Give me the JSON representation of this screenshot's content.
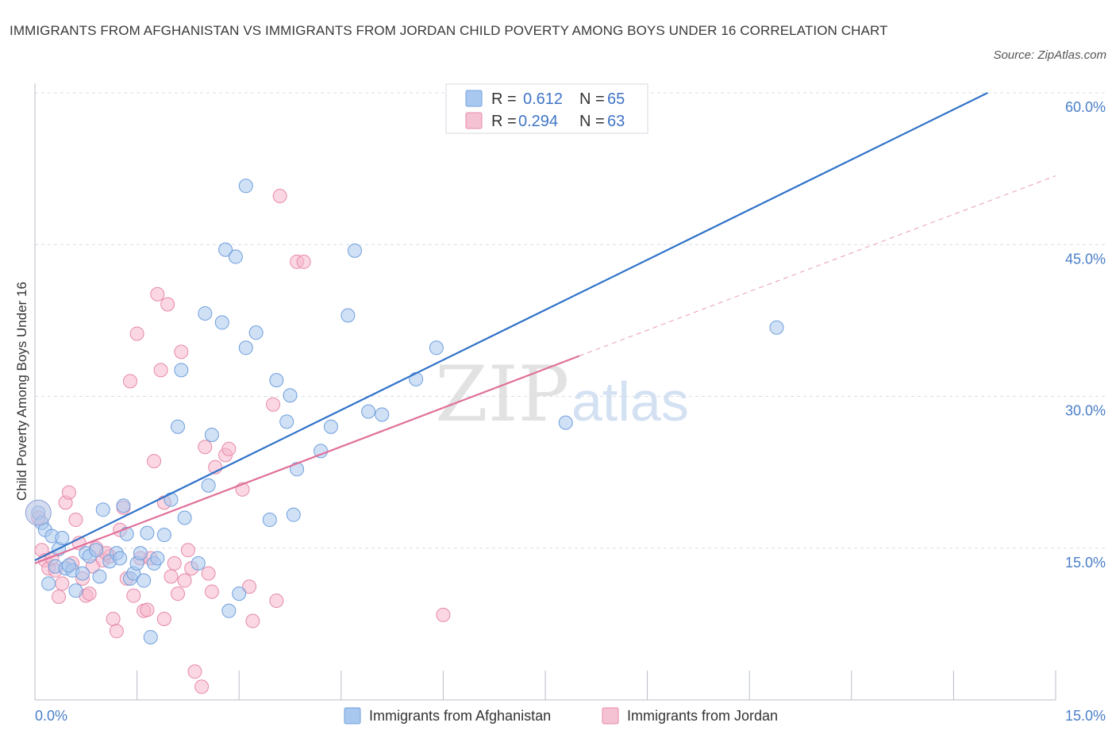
{
  "title": "IMMIGRANTS FROM AFGHANISTAN VS IMMIGRANTS FROM JORDAN CHILD POVERTY AMONG BOYS UNDER 16 CORRELATION CHART",
  "source": "Source: ZipAtlas.com",
  "watermark": {
    "zip": "ZIP",
    "atlas": "atlas"
  },
  "colors": {
    "afghanistan_fill": "#a9c8ef",
    "afghanistan_stroke": "#6f9fdc",
    "afghanistan_line": "#2f72c9",
    "jordan_fill": "#f5b6cb",
    "jordan_stroke": "#e68aaa",
    "jordan_line": "#e0709a",
    "grid": "#d8dde6",
    "axis_label": "#4a7ec9"
  },
  "legend": {
    "rows": [
      {
        "r_label": "R =",
        "r_value": "0.612",
        "n_label": "N =",
        "n_value": "65"
      },
      {
        "r_label": "R =",
        "r_value": "0.294",
        "n_label": "N =",
        "n_value": "63"
      }
    ]
  },
  "chart_data": {
    "type": "scatter",
    "title": "IMMIGRANTS FROM AFGHANISTAN VS IMMIGRANTS FROM JORDAN CHILD POVERTY AMONG BOYS UNDER 16 CORRELATION CHART",
    "xlabel": "",
    "ylabel": "Child Poverty Among Boys Under 16",
    "xlim": [
      0,
      15
    ],
    "ylim": [
      0,
      60
    ],
    "x_tick_labels": [
      "0.0%",
      "15.0%"
    ],
    "y_tick_labels": [
      "15.0%",
      "30.0%",
      "45.0%",
      "60.0%"
    ],
    "y_ticks": [
      15,
      30,
      45,
      60
    ],
    "series": [
      {
        "name": "Immigrants from Afghanistan",
        "R": 0.612,
        "N": 65,
        "trend": {
          "x": [
            0.0,
            14.0
          ],
          "y": [
            13.8,
            60.0
          ]
        },
        "points": [
          [
            0.05,
            18.5
          ],
          [
            0.1,
            17.5
          ],
          [
            0.15,
            16.8
          ],
          [
            0.25,
            16.2
          ],
          [
            0.35,
            14.9
          ],
          [
            0.4,
            16.0
          ],
          [
            0.2,
            11.5
          ],
          [
            0.3,
            13.2
          ],
          [
            0.45,
            13.0
          ],
          [
            0.55,
            12.8
          ],
          [
            0.6,
            10.8
          ],
          [
            0.7,
            12.5
          ],
          [
            0.75,
            14.5
          ],
          [
            0.8,
            14.2
          ],
          [
            0.9,
            14.8
          ],
          [
            0.95,
            12.2
          ],
          [
            1.0,
            18.8
          ],
          [
            1.1,
            13.7
          ],
          [
            1.2,
            14.5
          ],
          [
            1.25,
            14.0
          ],
          [
            1.3,
            19.2
          ],
          [
            1.35,
            16.4
          ],
          [
            1.4,
            12.0
          ],
          [
            1.45,
            12.5
          ],
          [
            1.5,
            13.5
          ],
          [
            1.55,
            14.5
          ],
          [
            1.6,
            11.8
          ],
          [
            1.65,
            16.5
          ],
          [
            1.7,
            6.2
          ],
          [
            1.75,
            13.5
          ],
          [
            1.8,
            14.0
          ],
          [
            1.9,
            16.3
          ],
          [
            2.0,
            19.8
          ],
          [
            2.1,
            27.0
          ],
          [
            2.15,
            32.6
          ],
          [
            2.2,
            18.0
          ],
          [
            2.4,
            13.5
          ],
          [
            2.5,
            38.2
          ],
          [
            2.55,
            21.2
          ],
          [
            2.6,
            26.2
          ],
          [
            2.75,
            37.3
          ],
          [
            2.8,
            44.5
          ],
          [
            2.85,
            8.8
          ],
          [
            2.95,
            43.8
          ],
          [
            3.0,
            10.5
          ],
          [
            3.1,
            34.8
          ],
          [
            3.1,
            50.8
          ],
          [
            3.25,
            36.3
          ],
          [
            3.45,
            17.8
          ],
          [
            3.55,
            31.6
          ],
          [
            3.7,
            27.5
          ],
          [
            3.75,
            30.1
          ],
          [
            3.8,
            18.3
          ],
          [
            3.85,
            22.8
          ],
          [
            4.2,
            24.6
          ],
          [
            4.35,
            27.0
          ],
          [
            4.6,
            38.0
          ],
          [
            4.7,
            44.4
          ],
          [
            4.9,
            28.5
          ],
          [
            5.1,
            28.2
          ],
          [
            5.6,
            31.7
          ],
          [
            5.9,
            34.8
          ],
          [
            7.8,
            27.4
          ],
          [
            10.9,
            36.8
          ],
          [
            0.5,
            13.3
          ]
        ]
      },
      {
        "name": "Immigrants from Jordan",
        "R": 0.294,
        "N": 63,
        "trend": {
          "x": [
            0.0,
            8.0
          ],
          "y": [
            13.5,
            34.0
          ]
        },
        "trend_ext": {
          "x": [
            8.0,
            15.0
          ],
          "y": [
            34.0,
            51.8
          ]
        },
        "points": [
          [
            0.05,
            18.0
          ],
          [
            0.1,
            14.8
          ],
          [
            0.15,
            13.8
          ],
          [
            0.2,
            13.0
          ],
          [
            0.3,
            12.8
          ],
          [
            0.35,
            10.2
          ],
          [
            0.4,
            11.5
          ],
          [
            0.45,
            19.5
          ],
          [
            0.5,
            20.5
          ],
          [
            0.55,
            13.5
          ],
          [
            0.6,
            17.8
          ],
          [
            0.7,
            12.0
          ],
          [
            0.75,
            10.3
          ],
          [
            0.8,
            10.5
          ],
          [
            0.9,
            15.0
          ],
          [
            1.0,
            13.8
          ],
          [
            1.1,
            14.2
          ],
          [
            1.15,
            8.0
          ],
          [
            1.2,
            6.8
          ],
          [
            1.25,
            16.8
          ],
          [
            1.3,
            19.0
          ],
          [
            1.35,
            12.0
          ],
          [
            1.4,
            31.5
          ],
          [
            1.45,
            10.3
          ],
          [
            1.5,
            36.2
          ],
          [
            1.55,
            14.0
          ],
          [
            1.6,
            8.8
          ],
          [
            1.65,
            8.9
          ],
          [
            1.7,
            14.0
          ],
          [
            1.75,
            23.6
          ],
          [
            1.8,
            40.1
          ],
          [
            1.85,
            32.6
          ],
          [
            1.9,
            8.0
          ],
          [
            1.95,
            39.1
          ],
          [
            2.0,
            12.2
          ],
          [
            2.05,
            13.5
          ],
          [
            2.1,
            10.5
          ],
          [
            2.15,
            34.4
          ],
          [
            2.2,
            11.8
          ],
          [
            2.25,
            14.8
          ],
          [
            2.3,
            13.0
          ],
          [
            2.35,
            2.8
          ],
          [
            2.45,
            1.3
          ],
          [
            2.5,
            25.0
          ],
          [
            2.6,
            10.7
          ],
          [
            2.65,
            23.0
          ],
          [
            2.8,
            24.2
          ],
          [
            2.85,
            24.8
          ],
          [
            3.05,
            20.8
          ],
          [
            3.15,
            11.2
          ],
          [
            3.2,
            7.8
          ],
          [
            3.5,
            29.2
          ],
          [
            3.55,
            9.8
          ],
          [
            3.6,
            49.8
          ],
          [
            3.85,
            43.3
          ],
          [
            3.95,
            43.3
          ],
          [
            6.0,
            8.4
          ],
          [
            0.25,
            14.0
          ],
          [
            0.65,
            15.5
          ],
          [
            0.85,
            13.2
          ],
          [
            1.05,
            14.5
          ],
          [
            1.9,
            19.5
          ],
          [
            2.55,
            12.5
          ]
        ]
      }
    ]
  },
  "y_axis_title": "Child Poverty Among Boys Under 16",
  "x_labels": {
    "left": "0.0%",
    "right": "15.0%"
  },
  "bottom_legend": [
    "Immigrants from Afghanistan",
    "Immigrants from Jordan"
  ]
}
